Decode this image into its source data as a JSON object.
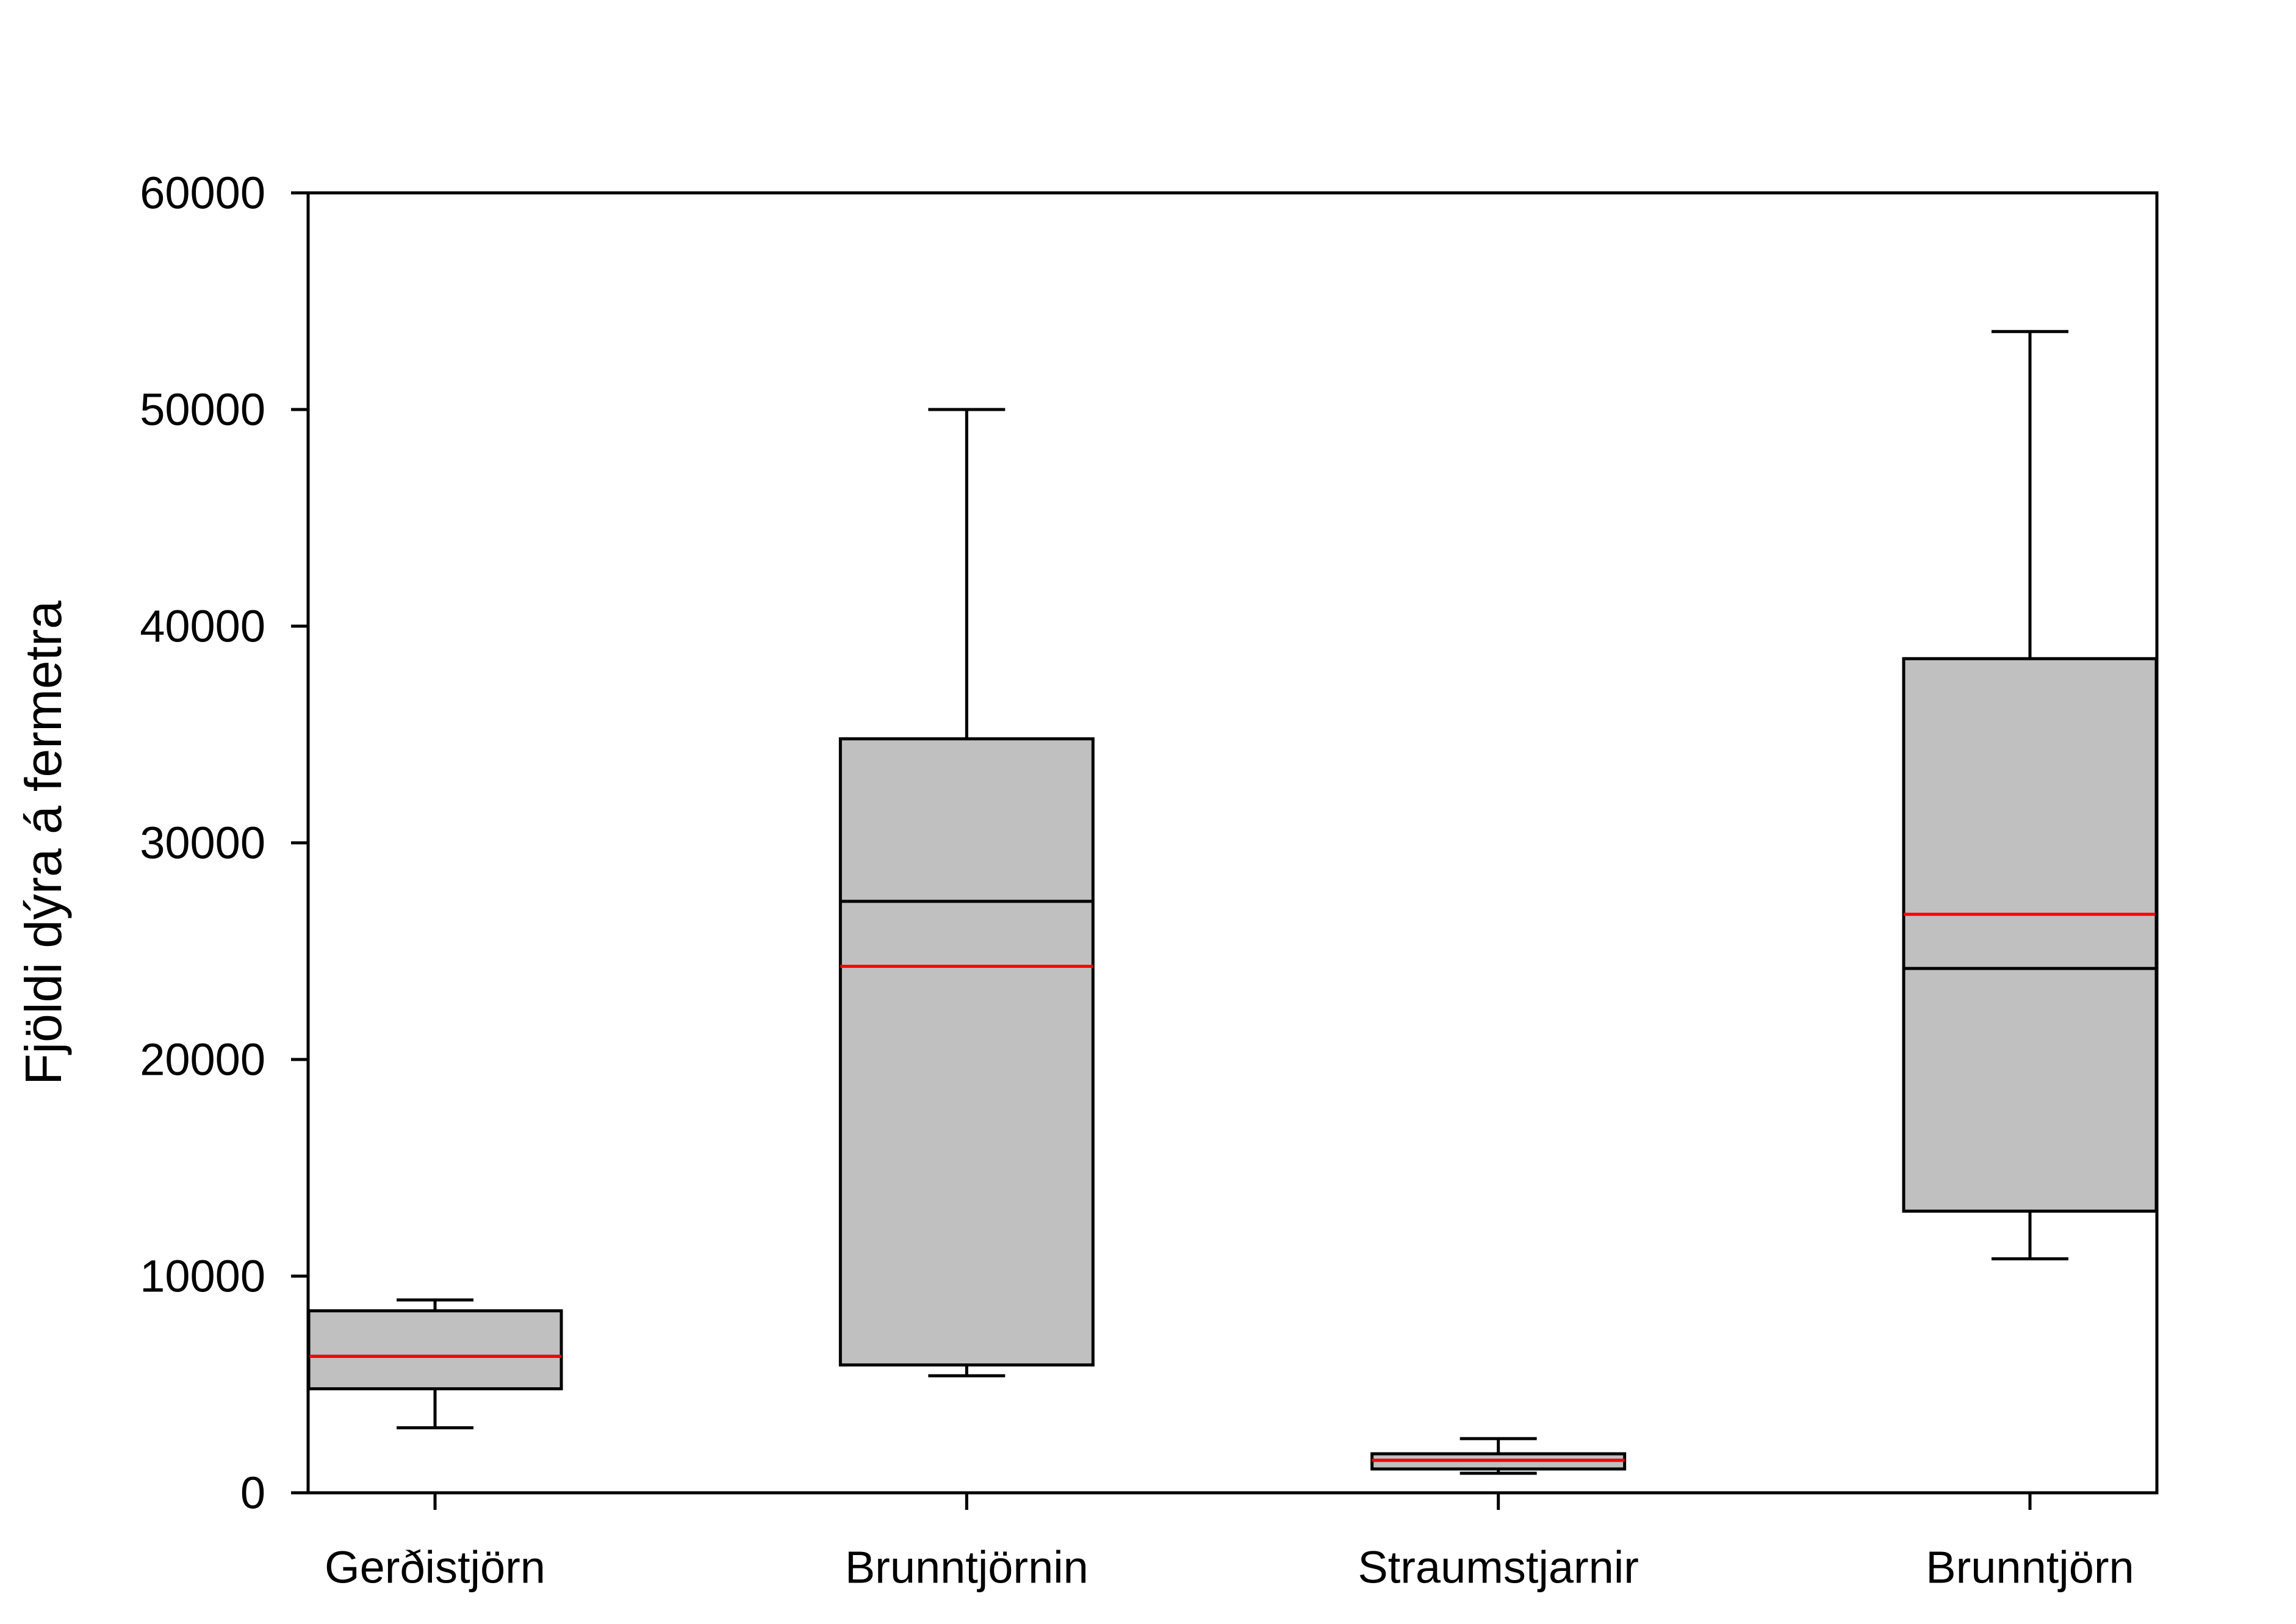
{
  "chart_data": {
    "type": "box",
    "title": "",
    "xlabel": "",
    "ylabel": "Fjöldi dýra á fermetra",
    "ylim": [
      0,
      60000
    ],
    "yticks": [
      0,
      10000,
      20000,
      30000,
      40000,
      50000,
      60000
    ],
    "ytick_labels": [
      "0",
      "10000",
      "20000",
      "30000",
      "40000",
      "50000",
      "60000"
    ],
    "grid": false,
    "legend": "none",
    "categories": [
      "Gerðistjörn",
      "Brunntjörnin",
      "Straumstjarnir",
      "Brunntjörn"
    ],
    "boxes": [
      {
        "whisker_low": 3000,
        "q1": 4800,
        "median": 6300,
        "mean": 6300,
        "q3": 8400,
        "whisker_high": 8900
      },
      {
        "whisker_low": 5400,
        "q1": 5900,
        "median": 27300,
        "mean": 24300,
        "q3": 34800,
        "whisker_high": 50000
      },
      {
        "whisker_low": 900,
        "q1": 1100,
        "median": 1500,
        "mean": 1500,
        "q3": 1800,
        "whisker_high": 2500
      },
      {
        "whisker_low": 10800,
        "q1": 13000,
        "median": 24200,
        "mean": 26700,
        "q3": 38500,
        "whisker_high": 53600
      }
    ],
    "colors": {
      "box_fill": "#c0c0c0",
      "median": "#000000",
      "mean": "#ff0000",
      "outline": "#000000"
    }
  }
}
